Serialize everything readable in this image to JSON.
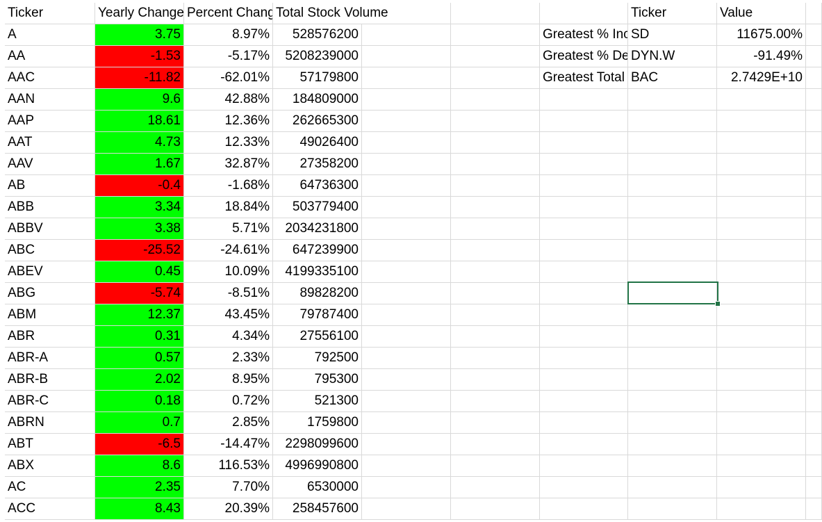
{
  "headers": {
    "ticker": "Ticker",
    "yearly_change": "Yearly Change",
    "percent_change": "Percent Change",
    "total_volume": "Total Stock Volume",
    "summary_ticker": "Ticker",
    "summary_value": "Value"
  },
  "rows": [
    {
      "ticker": "A",
      "yearly_change": "3.75",
      "percent_change": "8.97%",
      "total_volume": "528576200",
      "status": "positive"
    },
    {
      "ticker": "AA",
      "yearly_change": "-1.53",
      "percent_change": "-5.17%",
      "total_volume": "5208239000",
      "status": "negative"
    },
    {
      "ticker": "AAC",
      "yearly_change": "-11.82",
      "percent_change": "-62.01%",
      "total_volume": "57179800",
      "status": "negative"
    },
    {
      "ticker": "AAN",
      "yearly_change": "9.6",
      "percent_change": "42.88%",
      "total_volume": "184809000",
      "status": "positive"
    },
    {
      "ticker": "AAP",
      "yearly_change": "18.61",
      "percent_change": "12.36%",
      "total_volume": "262665300",
      "status": "positive"
    },
    {
      "ticker": "AAT",
      "yearly_change": "4.73",
      "percent_change": "12.33%",
      "total_volume": "49026400",
      "status": "positive"
    },
    {
      "ticker": "AAV",
      "yearly_change": "1.67",
      "percent_change": "32.87%",
      "total_volume": "27358200",
      "status": "positive"
    },
    {
      "ticker": "AB",
      "yearly_change": "-0.4",
      "percent_change": "-1.68%",
      "total_volume": "64736300",
      "status": "negative"
    },
    {
      "ticker": "ABB",
      "yearly_change": "3.34",
      "percent_change": "18.84%",
      "total_volume": "503779400",
      "status": "positive"
    },
    {
      "ticker": "ABBV",
      "yearly_change": "3.38",
      "percent_change": "5.71%",
      "total_volume": "2034231800",
      "status": "positive"
    },
    {
      "ticker": "ABC",
      "yearly_change": "-25.52",
      "percent_change": "-24.61%",
      "total_volume": "647239900",
      "status": "negative"
    },
    {
      "ticker": "ABEV",
      "yearly_change": "0.45",
      "percent_change": "10.09%",
      "total_volume": "4199335100",
      "status": "positive"
    },
    {
      "ticker": "ABG",
      "yearly_change": "-5.74",
      "percent_change": "-8.51%",
      "total_volume": "89828200",
      "status": "negative"
    },
    {
      "ticker": "ABM",
      "yearly_change": "12.37",
      "percent_change": "43.45%",
      "total_volume": "79787400",
      "status": "positive"
    },
    {
      "ticker": "ABR",
      "yearly_change": "0.31",
      "percent_change": "4.34%",
      "total_volume": "27556100",
      "status": "positive"
    },
    {
      "ticker": "ABR-A",
      "yearly_change": "0.57",
      "percent_change": "2.33%",
      "total_volume": "792500",
      "status": "positive"
    },
    {
      "ticker": "ABR-B",
      "yearly_change": "2.02",
      "percent_change": "8.95%",
      "total_volume": "795300",
      "status": "positive"
    },
    {
      "ticker": "ABR-C",
      "yearly_change": "0.18",
      "percent_change": "0.72%",
      "total_volume": "521300",
      "status": "positive"
    },
    {
      "ticker": "ABRN",
      "yearly_change": "0.7",
      "percent_change": "2.85%",
      "total_volume": "1759800",
      "status": "positive"
    },
    {
      "ticker": "ABT",
      "yearly_change": "-6.5",
      "percent_change": "-14.47%",
      "total_volume": "2298099600",
      "status": "negative"
    },
    {
      "ticker": "ABX",
      "yearly_change": "8.6",
      "percent_change": "116.53%",
      "total_volume": "4996990800",
      "status": "positive"
    },
    {
      "ticker": "AC",
      "yearly_change": "2.35",
      "percent_change": "7.70%",
      "total_volume": "6530000",
      "status": "positive"
    },
    {
      "ticker": "ACC",
      "yearly_change": "8.43",
      "percent_change": "20.39%",
      "total_volume": "258457600",
      "status": "positive"
    }
  ],
  "summary": [
    {
      "label": "Greatest % Increase",
      "ticker": "SD",
      "value": "11675.00%"
    },
    {
      "label": "Greatest % Decrease",
      "ticker": "DYN.W",
      "value": "-91.49%"
    },
    {
      "label": "Greatest Total Volume",
      "ticker": "BAC",
      "value": "2.7429E+10"
    }
  ],
  "colors": {
    "positive": "#00ff00",
    "negative": "#ff0000",
    "gridline": "#d9d9d9",
    "selection": "#217346"
  }
}
